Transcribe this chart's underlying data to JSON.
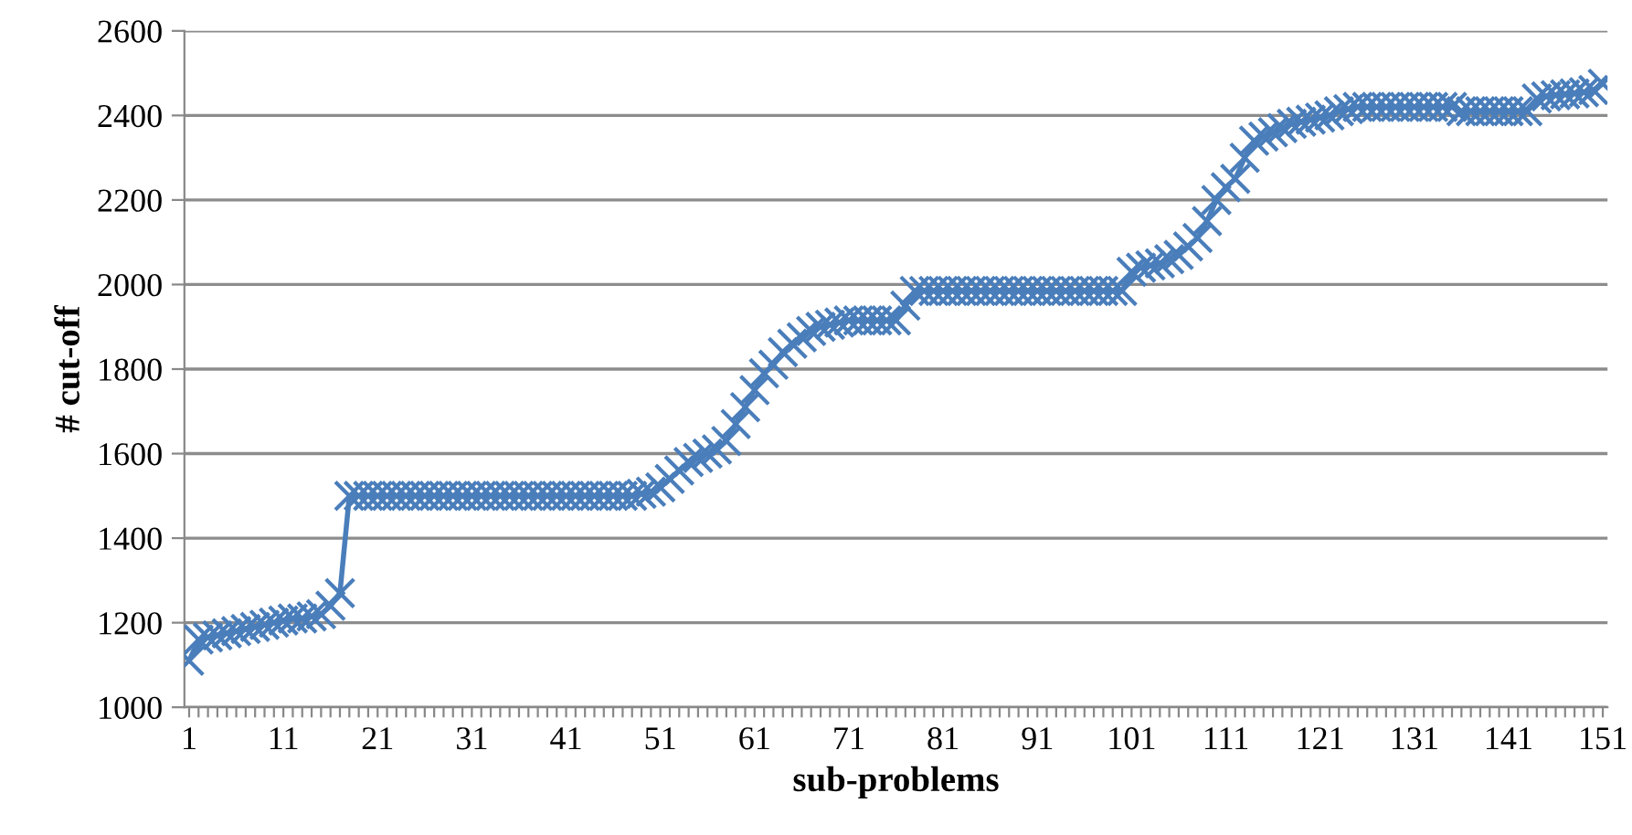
{
  "chart_data": {
    "type": "line",
    "xlabel": "sub-problems",
    "ylabel": "# cut-off",
    "categories": [
      "1",
      null,
      null,
      null,
      null,
      null,
      null,
      null,
      null,
      null,
      "11",
      null,
      null,
      null,
      null,
      null,
      null,
      null,
      null,
      null,
      "21",
      null,
      null,
      null,
      null,
      null,
      null,
      null,
      null,
      null,
      "31",
      null,
      null,
      null,
      null,
      null,
      null,
      null,
      null,
      null,
      "41",
      null,
      null,
      null,
      null,
      null,
      null,
      null,
      null,
      null,
      "51",
      null,
      null,
      null,
      null,
      null,
      null,
      null,
      null,
      null,
      "61",
      null,
      null,
      null,
      null,
      null,
      null,
      null,
      null,
      null,
      "71",
      null,
      null,
      null,
      null,
      null,
      null,
      null,
      null,
      null,
      "81",
      null,
      null,
      null,
      null,
      null,
      null,
      null,
      null,
      null,
      "91",
      null,
      null,
      null,
      null,
      null,
      null,
      null,
      null,
      null,
      "101",
      null,
      null,
      null,
      null,
      null,
      null,
      null,
      null,
      null,
      "111",
      null,
      null,
      null,
      null,
      null,
      null,
      null,
      null,
      null,
      "121",
      null,
      null,
      null,
      null,
      null,
      null,
      null,
      null,
      null,
      "131",
      null,
      null,
      null,
      null,
      null,
      null,
      null,
      null,
      null,
      "141",
      null,
      null,
      null,
      null,
      null,
      null,
      null,
      null,
      null,
      "151"
    ],
    "series": [
      {
        "color": "#4a7ebb",
        "values": [
          1110,
          1160,
          1165,
          1170,
          1175,
          1180,
          1185,
          1190,
          1195,
          1200,
          1205,
          1210,
          1210,
          1215,
          1220,
          1240,
          1270,
          1500,
          1500,
          1500,
          1500,
          1500,
          1500,
          1500,
          1500,
          1500,
          1500,
          1500,
          1500,
          1500,
          1500,
          1500,
          1500,
          1500,
          1500,
          1500,
          1500,
          1500,
          1500,
          1500,
          1500,
          1500,
          1500,
          1500,
          1500,
          1500,
          1500,
          1500,
          1505,
          1510,
          1520,
          1540,
          1560,
          1580,
          1590,
          1600,
          1610,
          1630,
          1670,
          1710,
          1750,
          1790,
          1810,
          1840,
          1860,
          1875,
          1890,
          1900,
          1905,
          1910,
          1915,
          1915,
          1915,
          1915,
          1915,
          1915,
          1950,
          1985,
          1985,
          1985,
          1985,
          1985,
          1985,
          1985,
          1985,
          1985,
          1985,
          1985,
          1985,
          1985,
          1985,
          1985,
          1985,
          1985,
          1985,
          1985,
          1985,
          1985,
          1985,
          1985,
          2030,
          2040,
          2045,
          2050,
          2060,
          2070,
          2090,
          2110,
          2150,
          2200,
          2230,
          2250,
          2300,
          2340,
          2350,
          2360,
          2370,
          2380,
          2385,
          2390,
          2395,
          2400,
          2410,
          2415,
          2420,
          2420,
          2420,
          2420,
          2420,
          2420,
          2420,
          2420,
          2420,
          2420,
          2420,
          2410,
          2410,
          2410,
          2410,
          2410,
          2410,
          2410,
          2410,
          2440,
          2445,
          2448,
          2450,
          2452,
          2455,
          2460,
          2475
        ]
      }
    ],
    "ylim": [
      1000,
      2600
    ],
    "yticks": [
      1000,
      1200,
      1400,
      1600,
      1800,
      2000,
      2200,
      2400,
      2600
    ],
    "grid": "y",
    "marker": "cross",
    "line_style": "solid"
  }
}
